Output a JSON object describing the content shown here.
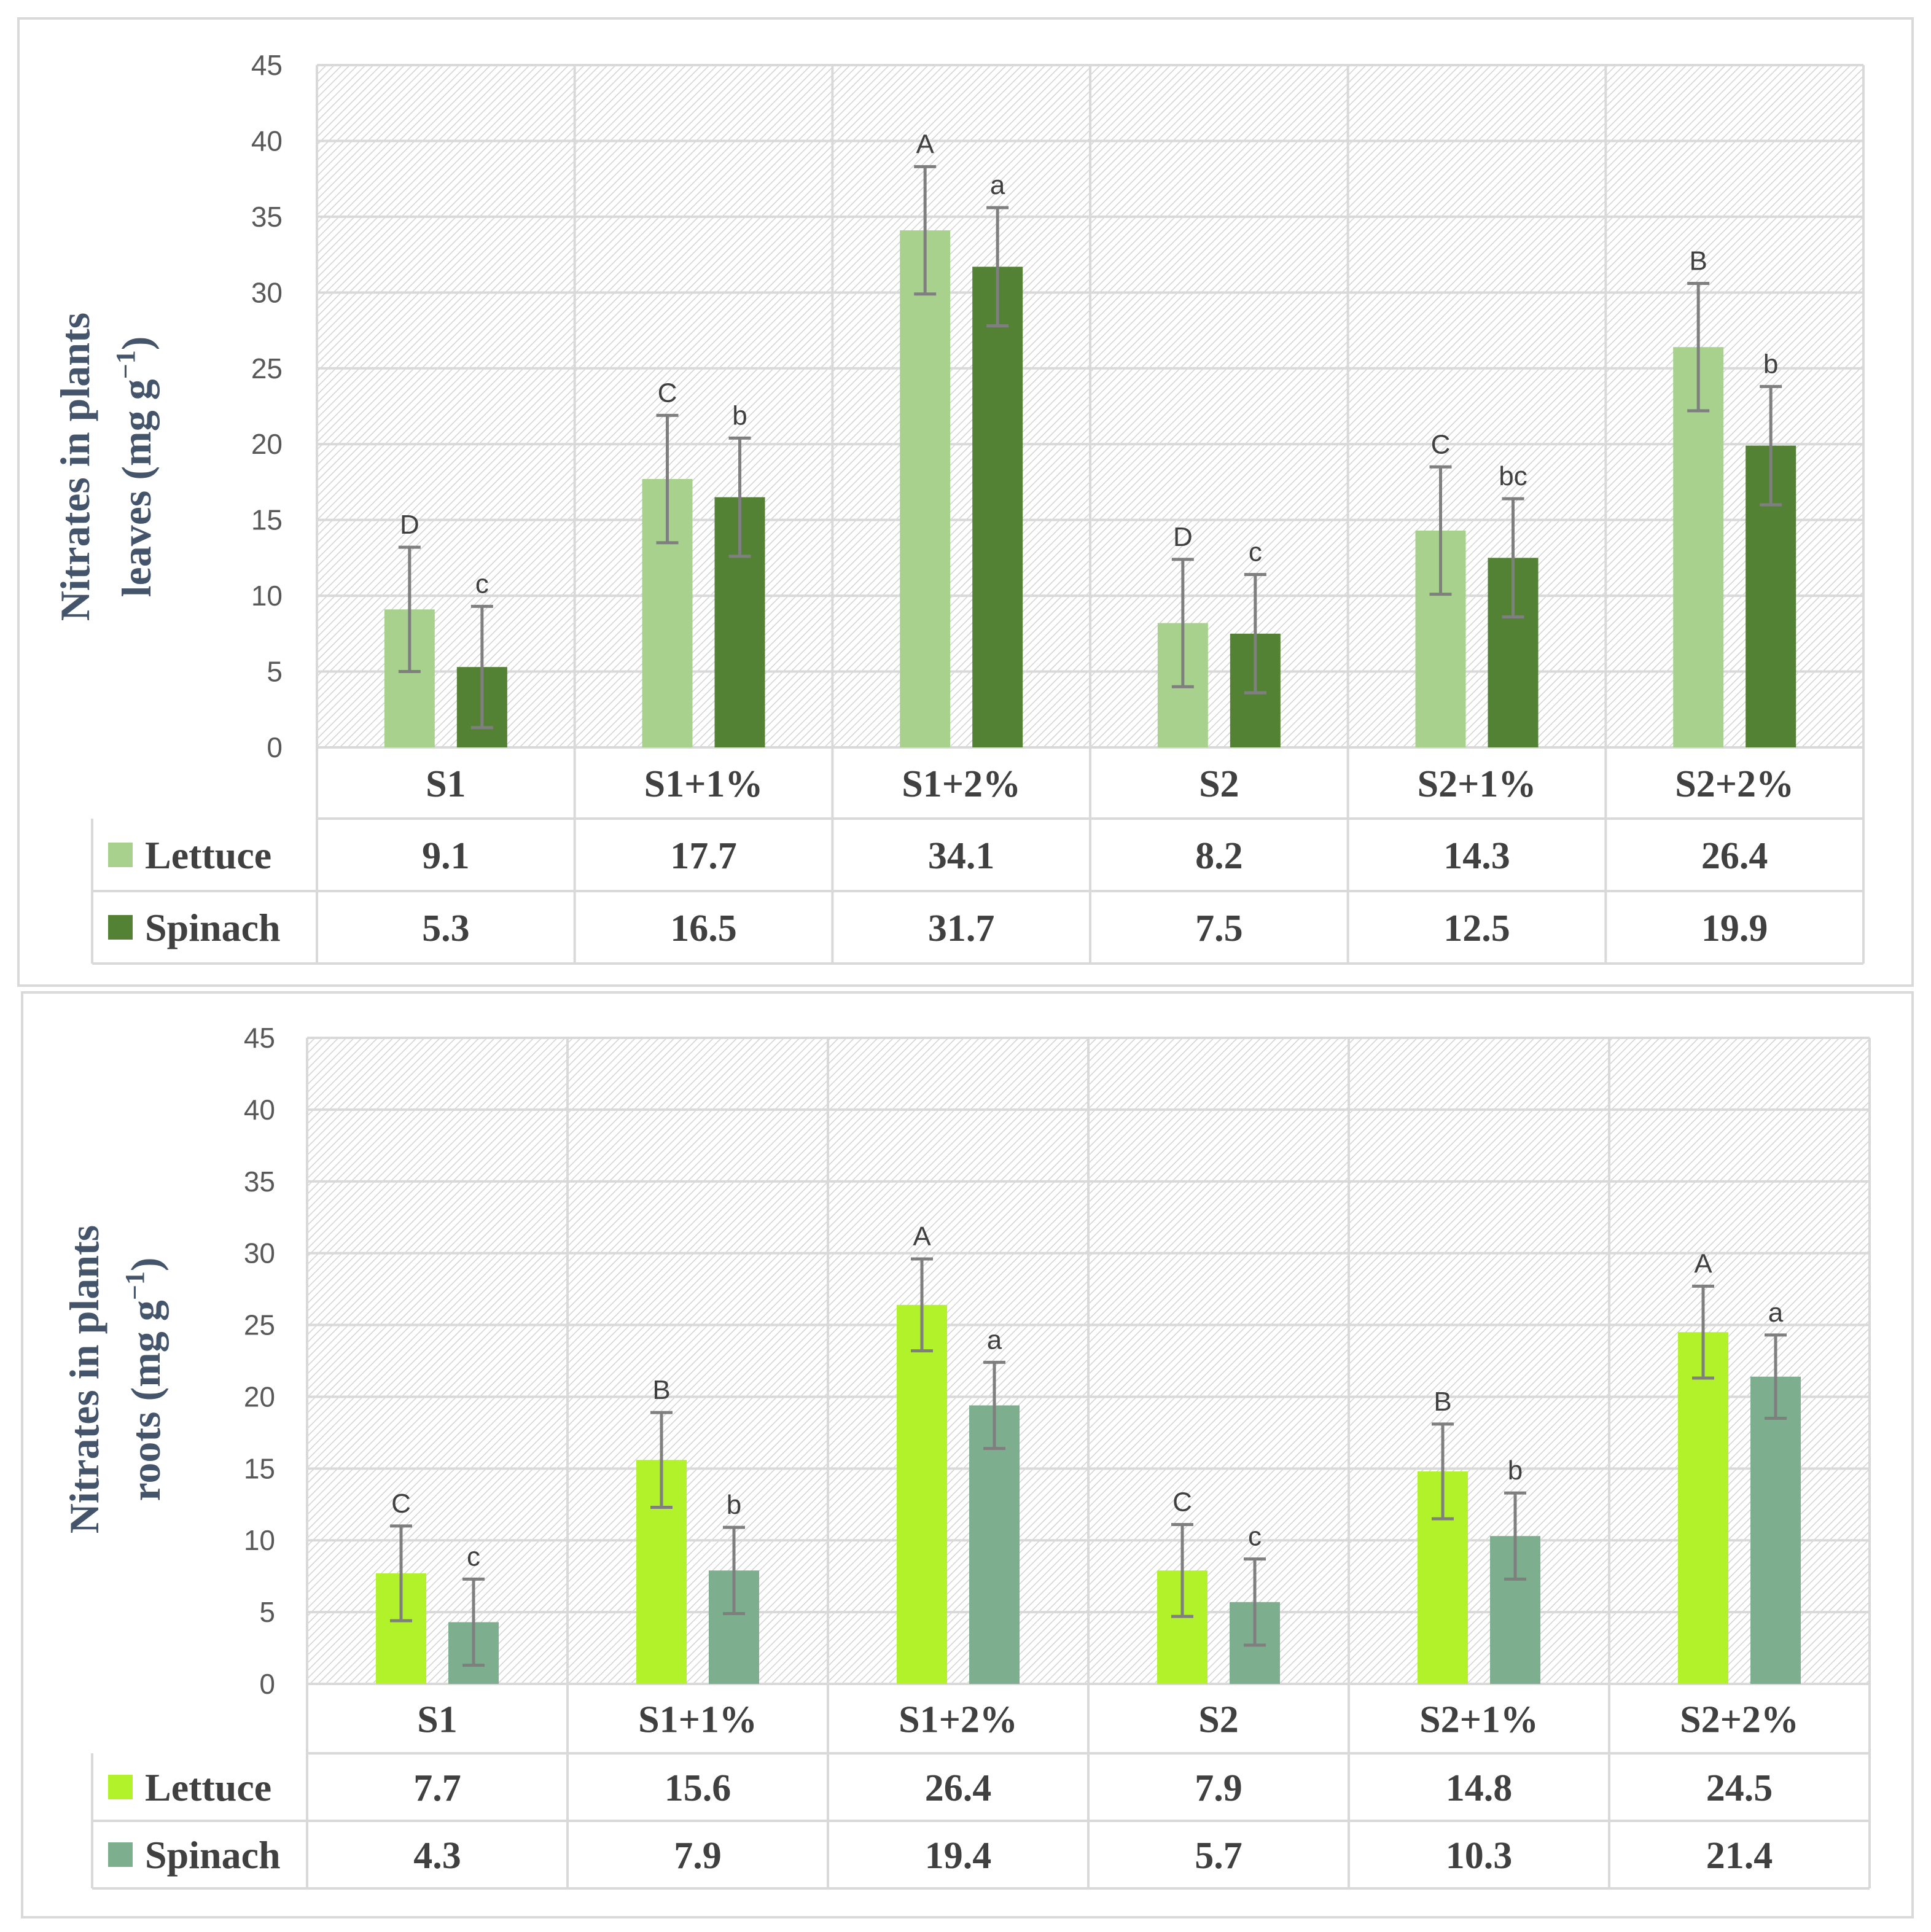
{
  "chart_data": [
    {
      "type": "bar",
      "panel": "leaves",
      "ylabel": "Nitrates in plants leaves (mg g−1)",
      "ylabel_line1": "Nitrates in plants",
      "ylabel_line2_text": "leaves  (mg g",
      "ylabel_sup": "−1",
      "ylabel_close": ")",
      "ylim": [
        0,
        45
      ],
      "yticks": [
        0,
        5,
        10,
        15,
        20,
        25,
        30,
        35,
        40,
        45
      ],
      "categories": [
        "S1",
        "S1+1%",
        "S1+2%",
        "S2",
        "S2+1%",
        "S2+2%"
      ],
      "series": [
        {
          "name": "Lettuce",
          "color": "#a9d18e",
          "values": [
            9.1,
            17.7,
            34.1,
            8.2,
            14.3,
            26.4
          ],
          "value_labels": [
            "9.1",
            "17.7",
            "34.1",
            "8.2",
            "14.3",
            "26.4"
          ],
          "errors": [
            4.1,
            4.2,
            4.2,
            4.2,
            4.2,
            4.2
          ],
          "letters": [
            "D",
            "C",
            "A",
            "D",
            "C",
            "B"
          ]
        },
        {
          "name": "Spinach",
          "color": "#548235",
          "values": [
            5.3,
            16.5,
            31.7,
            7.5,
            12.5,
            19.9
          ],
          "value_labels": [
            "5.3",
            "16.5",
            "31.7",
            "7.5",
            "12.5",
            "19.9"
          ],
          "errors": [
            4.0,
            3.9,
            3.9,
            3.9,
            3.9,
            3.9
          ],
          "letters": [
            "c",
            "b",
            "a",
            "c",
            "bc",
            "b"
          ]
        }
      ]
    },
    {
      "type": "bar",
      "panel": "roots",
      "ylabel": "Nitrates in plants roots (mg g−1)",
      "ylabel_line1": "Nitrates in plants",
      "ylabel_line2_text": "roots  (mg g",
      "ylabel_sup": "−1",
      "ylabel_close": ")",
      "ylim": [
        0,
        45
      ],
      "yticks": [
        0,
        5,
        10,
        15,
        20,
        25,
        30,
        35,
        40,
        45
      ],
      "categories": [
        "S1",
        "S1+1%",
        "S1+2%",
        "S2",
        "S2+1%",
        "S2+2%"
      ],
      "series": [
        {
          "name": "Lettuce",
          "color": "#b2f22a",
          "values": [
            7.7,
            15.6,
            26.4,
            7.9,
            14.8,
            24.5
          ],
          "value_labels": [
            "7.7",
            "15.6",
            "26.4",
            "7.9",
            "14.8",
            "24.5"
          ],
          "errors": [
            3.3,
            3.3,
            3.2,
            3.2,
            3.3,
            3.2
          ],
          "letters": [
            "C",
            "B",
            "A",
            "C",
            "B",
            "A"
          ]
        },
        {
          "name": "Spinach",
          "color": "#7daf8e",
          "values": [
            4.3,
            7.9,
            19.4,
            5.7,
            10.3,
            21.4
          ],
          "value_labels": [
            "4.3",
            "7.9",
            "19.4",
            "5.7",
            "10.3",
            "21.4"
          ],
          "errors": [
            3.0,
            3.0,
            3.0,
            3.0,
            3.0,
            2.9
          ],
          "letters": [
            "c",
            "b",
            "a",
            "c",
            "b",
            "a"
          ]
        }
      ]
    }
  ]
}
